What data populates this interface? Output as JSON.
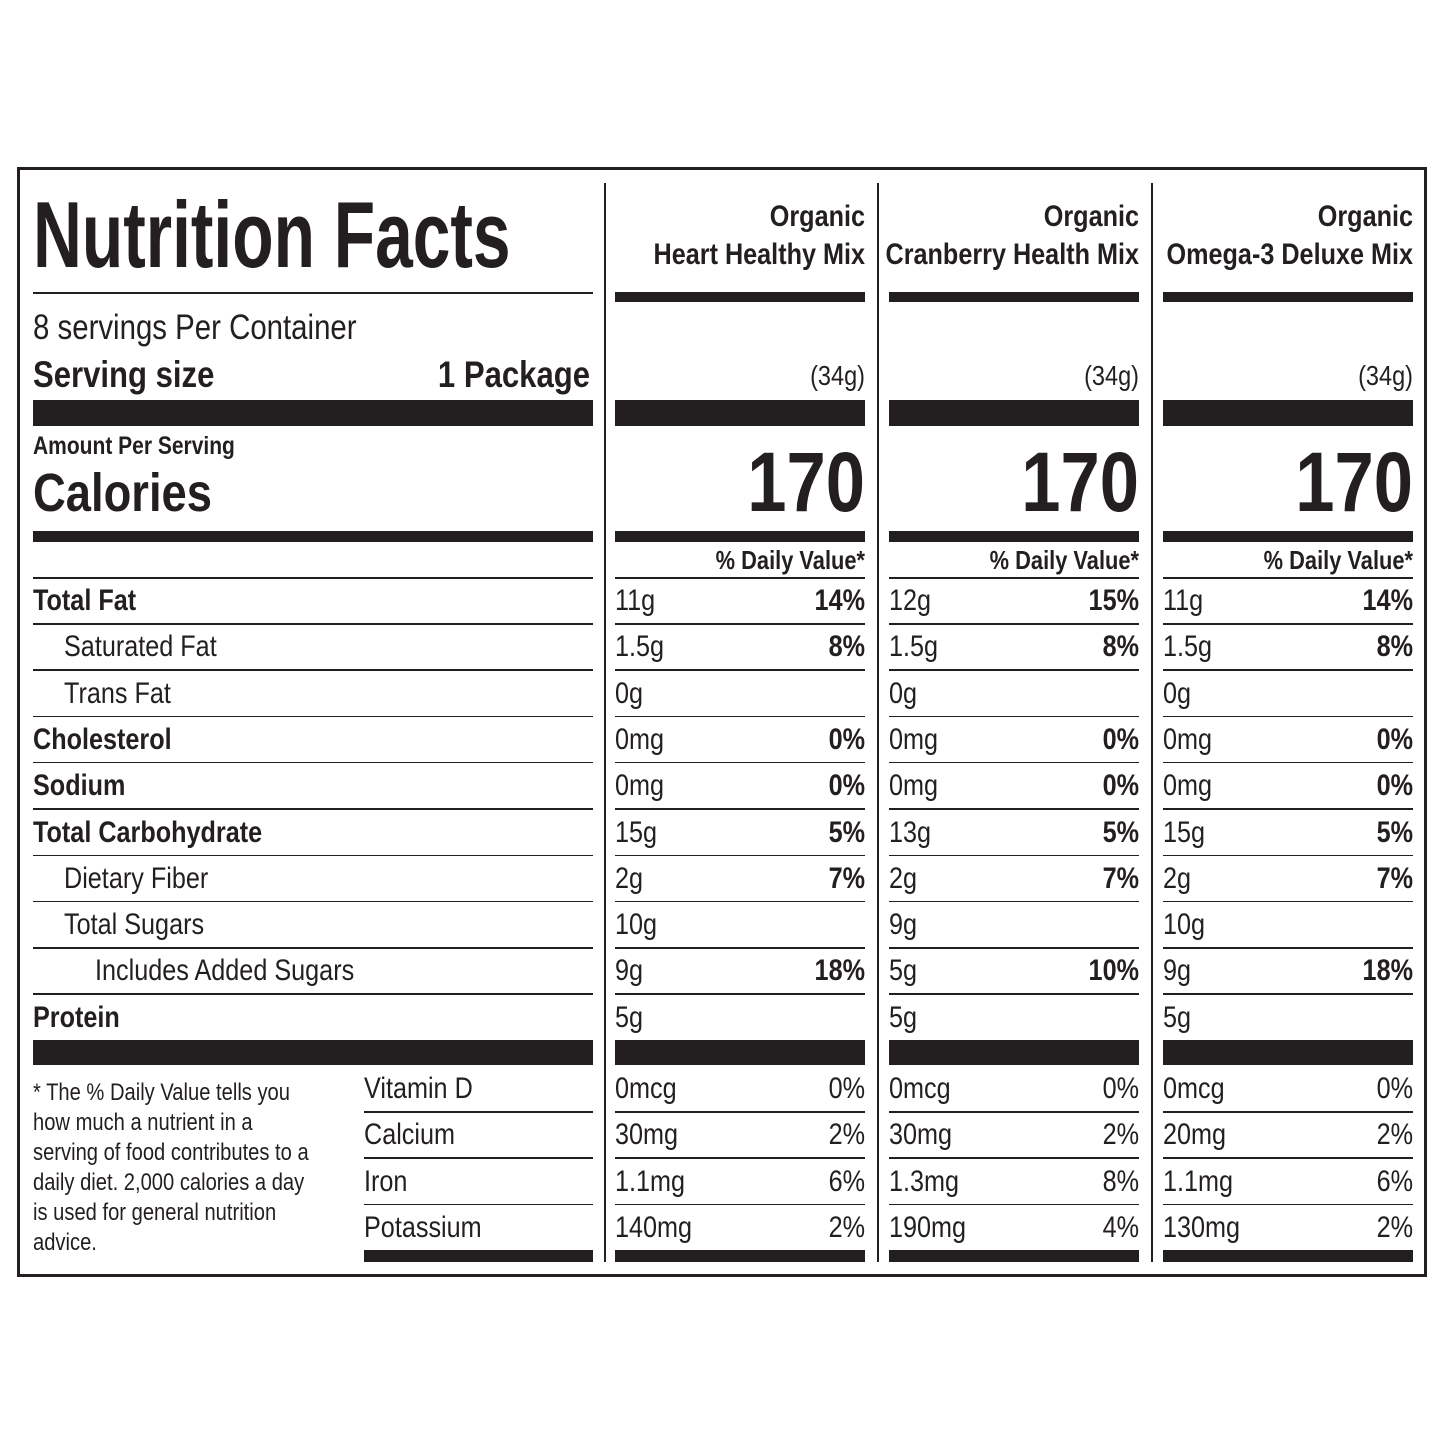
{
  "title": "Nutrition Facts",
  "servings_per_container": "8 servings Per Container",
  "serving_size_label": "Serving size",
  "serving_size": "1 Package",
  "amount_per_serving": "Amount Per Serving",
  "calories_label": "Calories",
  "nutrients": [
    "Total Fat",
    "Saturated Fat",
    "Trans Fat",
    "Cholesterol",
    "Sodium",
    "Total Carbohydrate",
    "Dietary Fiber",
    "Total Sugars",
    "Includes Added Sugars",
    "Protein"
  ],
  "footnote": "* The % Daily Value tells you how  much a nutrient in a serving of food contributes to a daily diet. 2,000 calories a day is used for general nutrition advice.",
  "vitamins": [
    "Vitamin D",
    "Calcium",
    "Iron",
    "Potassium"
  ],
  "products": [
    {
      "name_line1": "Organic",
      "name_line2": "Heart Healthy Mix",
      "serving_weight": "(34g)",
      "calories": 170,
      "daily_value_header": "% Daily Value*",
      "nutrients": [
        [
          "11g",
          "14%"
        ],
        [
          "1.5g",
          "8%"
        ],
        [
          "0g",
          null
        ],
        [
          "0mg",
          "0%"
        ],
        [
          "0mg",
          "0%"
        ],
        [
          "15g",
          "5%"
        ],
        [
          "2g",
          "7%"
        ],
        [
          "10g",
          null
        ],
        [
          "9g",
          "18%"
        ],
        [
          "5g",
          null
        ]
      ],
      "vitamins": [
        [
          "0mcg",
          "0%"
        ],
        [
          "30mg",
          "2%"
        ],
        [
          "1.1mg",
          "6%"
        ],
        [
          "140mg",
          "2%"
        ]
      ]
    },
    {
      "name_line1": "Organic",
      "name_line2": "Cranberry Health Mix",
      "serving_weight": "(34g)",
      "calories": 170,
      "daily_value_header": "% Daily Value*",
      "nutrients": [
        [
          "12g",
          "15%"
        ],
        [
          "1.5g",
          "8%"
        ],
        [
          "0g",
          null
        ],
        [
          "0mg",
          "0%"
        ],
        [
          "0mg",
          "0%"
        ],
        [
          "13g",
          "5%"
        ],
        [
          "2g",
          "7%"
        ],
        [
          "9g",
          null
        ],
        [
          "5g",
          "10%"
        ],
        [
          "5g",
          null
        ]
      ],
      "vitamins": [
        [
          "0mcg",
          "0%"
        ],
        [
          "30mg",
          "2%"
        ],
        [
          "1.3mg",
          "8%"
        ],
        [
          "190mg",
          "4%"
        ]
      ]
    },
    {
      "name_line1": "Organic",
      "name_line2": "Omega-3 Deluxe Mix",
      "serving_weight": "(34g)",
      "calories": 170,
      "daily_value_header": "% Daily Value*",
      "nutrients": [
        [
          "11g",
          "14%"
        ],
        [
          "1.5g",
          "8%"
        ],
        [
          "0g",
          null
        ],
        [
          "0mg",
          "0%"
        ],
        [
          "0mg",
          "0%"
        ],
        [
          "15g",
          "5%"
        ],
        [
          "2g",
          "7%"
        ],
        [
          "10g",
          null
        ],
        [
          "9g",
          "18%"
        ],
        [
          "5g",
          null
        ]
      ],
      "vitamins": [
        [
          "0mcg",
          "0%"
        ],
        [
          "20mg",
          "2%"
        ],
        [
          "1.1mg",
          "6%"
        ],
        [
          "130mg",
          "2%"
        ]
      ]
    }
  ]
}
